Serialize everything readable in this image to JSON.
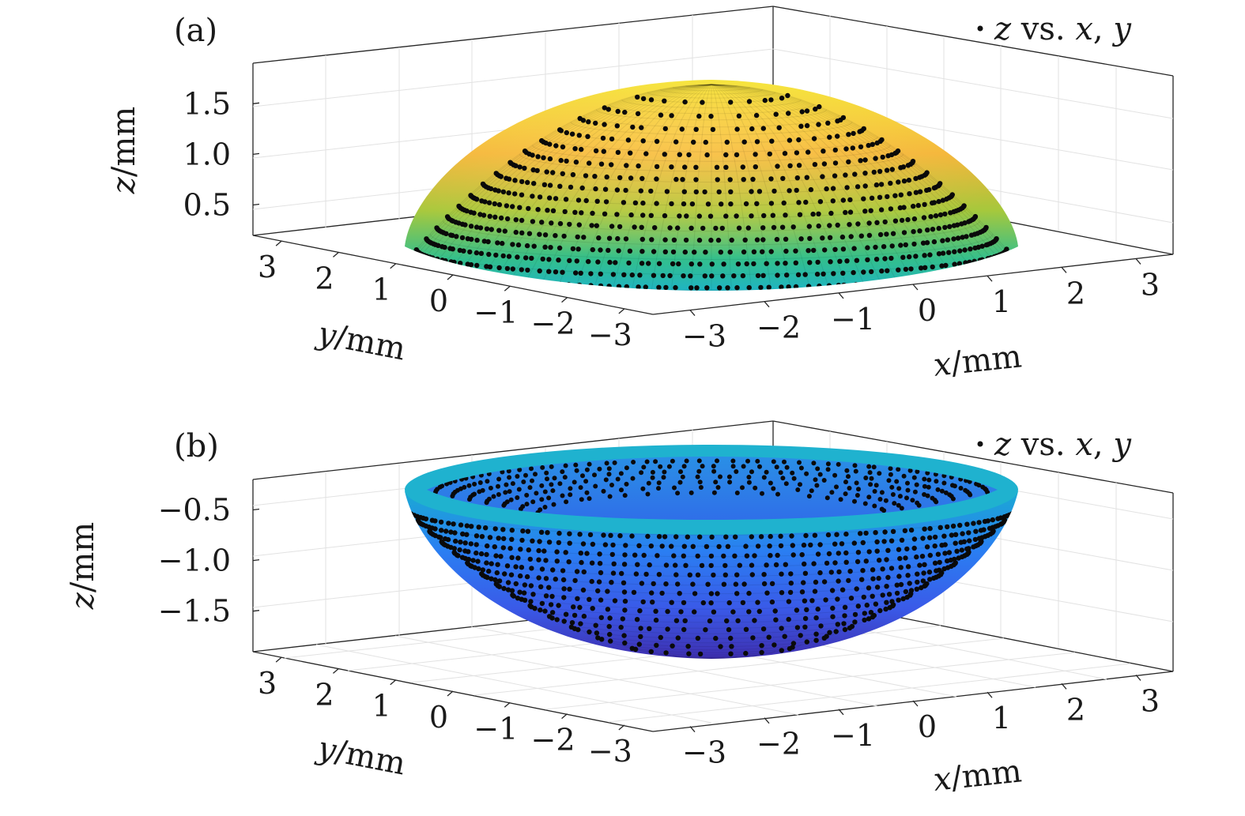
{
  "chart_data": [
    {
      "type": "surface3d",
      "panel_label": "(a)",
      "legend": {
        "entry": "z vs. x, y",
        "placement": "top-right",
        "marker": "dot"
      },
      "xlabel": "x/mm",
      "ylabel": "y/mm",
      "zlabel": "z/mm",
      "xlim": [
        -3.5,
        3.5
      ],
      "ylim": [
        -3.5,
        3.5
      ],
      "zlim": [
        0.2,
        1.9
      ],
      "xticks": [
        -3,
        -2,
        -1,
        0,
        1,
        2,
        3
      ],
      "yticks": [
        -3,
        -2,
        -1,
        0,
        1,
        2,
        3
      ],
      "zticks": [
        0.5,
        1.0,
        1.5
      ],
      "xtick_labels": [
        "−3",
        "−2",
        "−1",
        "0",
        "1",
        "2",
        "3"
      ],
      "ytick_labels": [
        "−3",
        "−2",
        "−1",
        "0",
        "1",
        "2",
        "3"
      ],
      "ztick_labels": [
        "0.5",
        "1.0",
        "1.5"
      ],
      "surface": {
        "shape": "dome",
        "rim_radius": 3.5,
        "rim_z": 0.25,
        "apex_z": 1.85
      },
      "grid": true,
      "colormap": [
        "#3e26a8",
        "#2f7bfa",
        "#18b5c9",
        "#5fc85c",
        "#c9c128",
        "#f4a830",
        "#f9f81a"
      ]
    },
    {
      "type": "surface3d",
      "panel_label": "(b)",
      "legend": {
        "entry": "z vs. x, y",
        "placement": "top-right",
        "marker": "dot"
      },
      "xlabel": "x/mm",
      "ylabel": "y/mm",
      "zlabel": "z/mm",
      "xlim": [
        -3.5,
        3.5
      ],
      "ylim": [
        -3.5,
        3.5
      ],
      "zlim": [
        -1.9,
        -0.2
      ],
      "xticks": [
        -3,
        -2,
        -1,
        0,
        1,
        2,
        3
      ],
      "yticks": [
        -3,
        -2,
        -1,
        0,
        1,
        2,
        3
      ],
      "zticks": [
        -0.5,
        -1.0,
        -1.5
      ],
      "xtick_labels": [
        "−3",
        "−2",
        "−1",
        "0",
        "1",
        "2",
        "3"
      ],
      "ytick_labels": [
        "−3",
        "−2",
        "−1",
        "0",
        "1",
        "2",
        "3"
      ],
      "ztick_labels": [
        "−0.5",
        "−1.0",
        "−1.5"
      ],
      "surface": {
        "shape": "bowl",
        "rim_radius": 3.5,
        "rim_z": -0.25,
        "bottom_z": -1.85
      },
      "grid": true,
      "colormap": [
        "#3e26a8",
        "#4354e8",
        "#2f7bfa",
        "#1ba0e2",
        "#18b5c9"
      ]
    }
  ]
}
